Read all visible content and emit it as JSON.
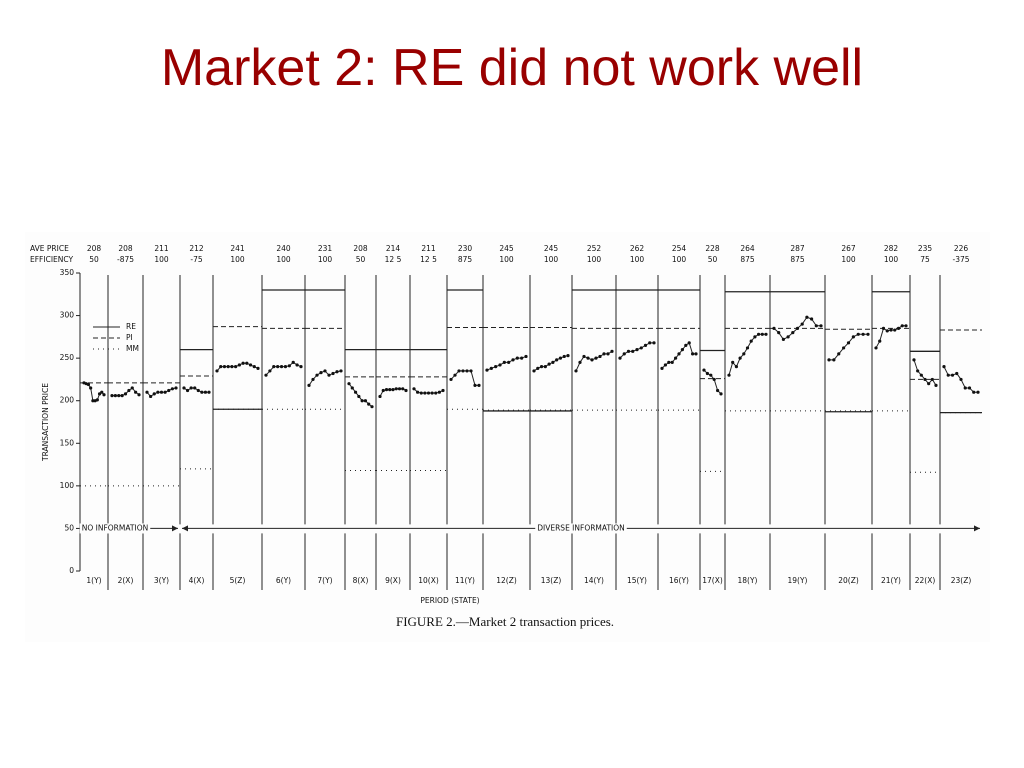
{
  "slide_title": "Market 2: RE did not work well",
  "chart_data": {
    "type": "period-prices",
    "caption": "FIGURE 2.—Market 2 transaction prices.",
    "x_label": "PERIOD (STATE)",
    "y_label": "TRANSACTION PRICE",
    "row_labels": [
      "AVE PRICE",
      "EFFICIENCY"
    ],
    "annotations": [
      "NO INFORMATION",
      "DIVERSE INFORMATION"
    ],
    "ylim": [
      0,
      350
    ],
    "yticks": [
      0,
      50,
      100,
      150,
      200,
      250,
      300,
      350
    ],
    "categories": [
      "1(Y)",
      "2(X)",
      "3(Y)",
      "4(X)",
      "5(Z)",
      "6(Y)",
      "7(Y)",
      "8(X)",
      "9(X)",
      "10(X)",
      "11(Y)",
      "12(Z)",
      "13(Z)",
      "14(Y)",
      "15(Y)",
      "16(Y)",
      "17(X)",
      "18(Y)",
      "19(Y)",
      "20(Z)",
      "21(Y)",
      "22(X)",
      "23(Z)"
    ],
    "ave_price": [
      208,
      208,
      211,
      212,
      241,
      240,
      231,
      208,
      214,
      211,
      230,
      245,
      245,
      252,
      262,
      254,
      228,
      264,
      287,
      267,
      282,
      235,
      226
    ],
    "efficiency": [
      "50",
      "-875",
      "100",
      "-75",
      "100",
      "100",
      "100",
      "50",
      "12 5",
      "12 5",
      "875",
      "100",
      "100",
      "100",
      "100",
      "100",
      "50",
      "875",
      "875",
      "100",
      "100",
      "75",
      "-375"
    ],
    "series": [
      {
        "name": "RE",
        "style": "solid",
        "values": [
          null,
          null,
          null,
          260,
          190,
          330,
          330,
          260,
          260,
          260,
          330,
          188,
          188,
          330,
          330,
          330,
          259,
          328,
          328,
          187,
          328,
          258,
          186
        ]
      },
      {
        "name": "PI",
        "style": "dashed",
        "values": [
          221,
          221,
          221,
          229,
          287,
          285,
          285,
          228,
          228,
          228,
          286,
          286,
          286,
          285,
          285,
          285,
          226,
          285,
          285,
          284,
          285,
          225,
          283
        ]
      },
      {
        "name": "MM",
        "style": "dotted",
        "values": [
          100,
          100,
          100,
          120,
          190,
          190,
          190,
          118,
          118,
          118,
          190,
          189,
          189,
          189,
          189,
          189,
          117,
          188,
          188,
          188,
          188,
          116,
          186
        ]
      }
    ],
    "prices": [
      [
        221,
        220,
        219,
        215,
        200,
        200,
        201,
        208,
        210,
        207
      ],
      [
        206,
        206,
        206,
        206,
        208,
        212,
        215,
        210,
        207
      ],
      [
        210,
        205,
        208,
        210,
        210,
        210,
        212,
        214,
        215
      ],
      [
        215,
        212,
        215,
        215,
        212,
        210,
        210,
        210
      ],
      [
        235,
        240,
        240,
        240,
        240,
        240,
        242,
        244,
        244,
        242,
        240,
        238
      ],
      [
        230,
        235,
        240,
        240,
        240,
        240,
        241,
        245,
        242,
        240
      ],
      [
        218,
        225,
        230,
        233,
        235,
        230,
        232,
        234,
        235
      ],
      [
        220,
        215,
        210,
        205,
        200,
        200,
        196,
        193
      ],
      [
        205,
        212,
        213,
        213,
        213,
        214,
        214,
        214,
        212
      ],
      [
        214,
        210,
        209,
        209,
        209,
        209,
        209,
        210,
        212
      ],
      [
        225,
        230,
        235,
        235,
        235,
        235,
        218,
        218
      ],
      [
        236,
        238,
        240,
        242,
        245,
        245,
        248,
        250,
        250,
        252
      ],
      [
        235,
        238,
        240,
        240,
        243,
        245,
        248,
        250,
        252,
        253
      ],
      [
        235,
        245,
        252,
        250,
        248,
        250,
        252,
        255,
        255,
        258
      ],
      [
        250,
        255,
        258,
        258,
        260,
        262,
        265,
        268,
        268
      ],
      [
        238,
        242,
        245,
        245,
        250,
        255,
        260,
        265,
        268,
        255,
        255
      ],
      [
        236,
        232,
        230,
        225,
        212,
        208
      ],
      [
        230,
        245,
        240,
        250,
        255,
        262,
        270,
        275,
        278,
        278,
        278
      ],
      [
        285,
        280,
        272,
        275,
        280,
        285,
        290,
        298,
        296,
        288,
        288
      ],
      [
        248,
        248,
        255,
        262,
        268,
        275,
        278,
        278,
        278
      ],
      [
        262,
        270,
        285,
        282,
        283,
        283,
        285,
        288,
        288
      ],
      [
        248,
        235,
        230,
        225,
        220,
        225,
        218
      ],
      [
        240,
        230,
        230,
        232,
        225,
        215,
        215,
        210,
        210
      ]
    ]
  }
}
